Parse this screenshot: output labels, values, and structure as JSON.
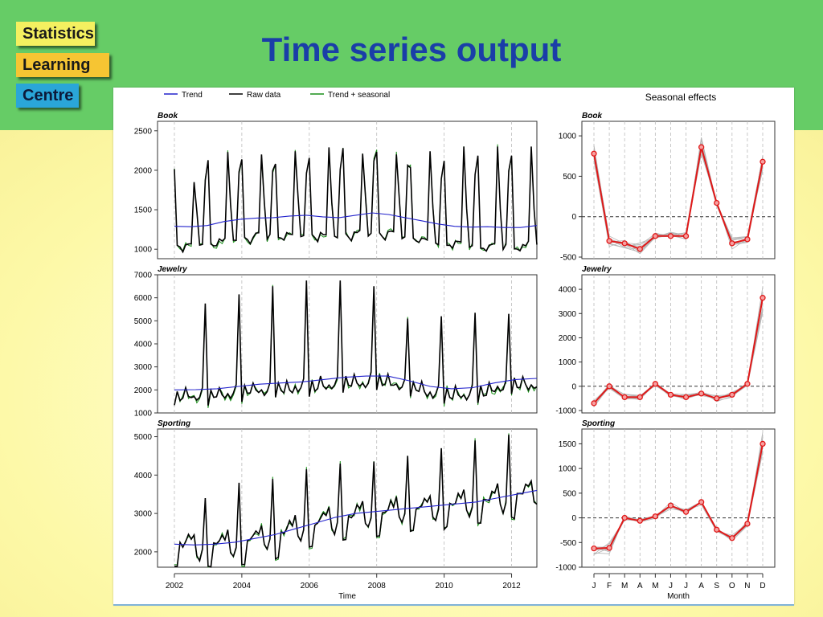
{
  "slide": {
    "title": "Time series output",
    "logo": [
      "Statistics",
      "Learning",
      "Centre"
    ]
  },
  "colors": {
    "band": "#66cc66",
    "background": "#fdfcb5",
    "title": "#1a3ea8"
  },
  "legend": [
    "Trend",
    "Raw data",
    "Trend + seasonal"
  ],
  "chart_data": [
    {
      "type": "line",
      "panel": "Book",
      "xlabel": "",
      "ylabel": "",
      "xlim": [
        2001.5,
        2012.75
      ],
      "ylim": [
        880,
        2620
      ],
      "yticks": [
        1000,
        1500,
        2000,
        2500
      ],
      "xticks": [
        2002,
        2004,
        2006,
        2008,
        2010,
        2012
      ],
      "trend": [
        1290,
        1285,
        1300,
        1350,
        1380,
        1395,
        1400,
        1420,
        1430,
        1410,
        1400,
        1430,
        1460,
        1440,
        1400,
        1360,
        1320,
        1290,
        1280,
        1285,
        1275,
        1275,
        1300
      ],
      "peaks": [
        2120,
        1850,
        2240,
        2230,
        2250,
        2200,
        2190,
        2240,
        2270,
        2290,
        2400,
        2210,
        2350,
        2200,
        2140,
        2240,
        2230,
        2300
      ],
      "series": [
        {
          "name": "Trend",
          "color": "#2222cc"
        },
        {
          "name": "Raw data",
          "color": "#000000"
        },
        {
          "name": "Trend + seasonal",
          "color": "#1a8f1a"
        }
      ]
    },
    {
      "type": "line",
      "panel": "Jewelry",
      "xlabel": "",
      "ylabel": "",
      "xlim": [
        2001.5,
        2012.75
      ],
      "ylim": [
        1000,
        7000
      ],
      "yticks": [
        1000,
        2000,
        3000,
        4000,
        5000,
        6000,
        7000
      ],
      "xticks": [
        2002,
        2004,
        2006,
        2008,
        2010,
        2012
      ],
      "trend": [
        2000,
        2010,
        2050,
        2150,
        2250,
        2300,
        2350,
        2450,
        2550,
        2600,
        2600,
        2400,
        2150,
        2050,
        2100,
        2300,
        2450,
        2500
      ],
      "peaks": [
        5750,
        6150,
        6500,
        6750,
        6750,
        6500,
        5100,
        5200,
        5350,
        5300
      ],
      "series": [
        {
          "name": "Trend",
          "color": "#2222cc"
        },
        {
          "name": "Raw data",
          "color": "#000000"
        },
        {
          "name": "Trend + seasonal",
          "color": "#1a8f1a"
        }
      ]
    },
    {
      "type": "line",
      "panel": "Sporting",
      "xlabel": "Time",
      "ylabel": "",
      "xlim": [
        2001.5,
        2012.75
      ],
      "ylim": [
        1600,
        5200
      ],
      "yticks": [
        2000,
        3000,
        4000,
        5000
      ],
      "xticks": [
        2002,
        2004,
        2006,
        2008,
        2010,
        2012
      ],
      "trend": [
        2200,
        2180,
        2200,
        2250,
        2350,
        2450,
        2600,
        2750,
        2900,
        3000,
        3050,
        3100,
        3150,
        3200,
        3250,
        3300,
        3400,
        3500,
        3600
      ],
      "peaks": [
        3400,
        3800,
        3900,
        4150,
        4300,
        4350,
        4500,
        4700,
        4900,
        5050,
        5100
      ],
      "series": [
        {
          "name": "Trend",
          "color": "#2222cc"
        },
        {
          "name": "Raw data",
          "color": "#000000"
        },
        {
          "name": "Trend + seasonal",
          "color": "#1a8f1a"
        }
      ]
    },
    {
      "type": "line",
      "panel": "Book",
      "title": "Seasonal effects",
      "xlabel": "",
      "ylim": [
        -520,
        1180
      ],
      "categories": [
        "J",
        "F",
        "M",
        "A",
        "M",
        "J",
        "J",
        "A",
        "S",
        "O",
        "N",
        "D"
      ],
      "yticks": [
        -500,
        0,
        500,
        1000
      ],
      "values": [
        780,
        -300,
        -330,
        -400,
        -240,
        -240,
        -240,
        860,
        170,
        -330,
        -280,
        680
      ]
    },
    {
      "type": "line",
      "panel": "Jewelry",
      "xlabel": "",
      "ylim": [
        -1100,
        4600
      ],
      "categories": [
        "J",
        "F",
        "M",
        "A",
        "M",
        "J",
        "J",
        "A",
        "S",
        "O",
        "N",
        "D"
      ],
      "yticks": [
        -1000,
        0,
        1000,
        2000,
        3000,
        4000
      ],
      "values": [
        -700,
        0,
        -450,
        -450,
        100,
        -350,
        -450,
        -300,
        -500,
        -350,
        100,
        3650
      ]
    },
    {
      "type": "line",
      "panel": "Sporting",
      "xlabel": "Month",
      "ylim": [
        -1000,
        1800
      ],
      "categories": [
        "J",
        "F",
        "M",
        "A",
        "M",
        "J",
        "J",
        "A",
        "S",
        "O",
        "N",
        "D"
      ],
      "yticks": [
        -1000,
        -500,
        0,
        500,
        1000,
        1500
      ],
      "values": [
        -620,
        -610,
        0,
        -60,
        30,
        250,
        120,
        320,
        -240,
        -410,
        -120,
        1500
      ]
    }
  ]
}
